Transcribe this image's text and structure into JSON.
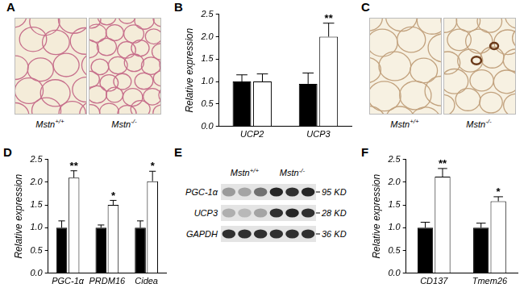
{
  "chart_data": [
    {
      "panel": "B",
      "type": "bar",
      "y_label": "Relative expression",
      "categories": [
        "UCP2",
        "UCP3"
      ],
      "series": [
        {
          "color": "#000000",
          "values": [
            1.0,
            0.95
          ],
          "errors": [
            0.15,
            0.24
          ]
        },
        {
          "color": "#ffffff",
          "values": [
            1.0,
            2.0
          ],
          "errors": [
            0.17,
            0.3
          ]
        }
      ],
      "annotations": [
        {
          "category": "UCP3",
          "series": 1,
          "text": "**"
        }
      ],
      "ylim": [
        0,
        2.5
      ],
      "yticks": [
        {
          "value": 0,
          "label": "0.0"
        },
        {
          "value": 0.5,
          "label": "0.5"
        },
        {
          "value": 1,
          "label": "1.0"
        },
        {
          "value": 1.5,
          "label": "1.5"
        },
        {
          "value": 2,
          "label": "2.0"
        },
        {
          "value": 2.5,
          "label": "2.5"
        }
      ],
      "grid": false
    },
    {
      "panel": "D",
      "type": "bar",
      "y_label": "Relative expression",
      "categories": [
        "PGC-1α",
        "PRDM16",
        "Cidea"
      ],
      "series": [
        {
          "color": "#000000",
          "values": [
            1.0,
            1.0,
            1.0
          ],
          "errors": [
            0.15,
            0.06,
            0.15
          ]
        },
        {
          "color": "#ffffff",
          "values": [
            2.1,
            1.5,
            2.02
          ],
          "errors": [
            0.15,
            0.1,
            0.22
          ]
        }
      ],
      "annotations": [
        {
          "category": "PGC-1α",
          "series": 1,
          "text": "**"
        },
        {
          "category": "PRDM16",
          "series": 1,
          "text": "*"
        },
        {
          "category": "Cidea",
          "series": 1,
          "text": "*"
        }
      ],
      "ylim": [
        0,
        2.5
      ],
      "yticks": [
        {
          "value": 0,
          "label": "0.0"
        },
        {
          "value": 0.5,
          "label": "0.5"
        },
        {
          "value": 1,
          "label": "1.0"
        },
        {
          "value": 1.5,
          "label": "1.5"
        },
        {
          "value": 2,
          "label": "2.0"
        },
        {
          "value": 2.5,
          "label": "2.5"
        }
      ],
      "grid": false
    },
    {
      "panel": "F",
      "type": "bar",
      "y_label": "Relative expression",
      "categories": [
        "CD137",
        "Tmem26"
      ],
      "series": [
        {
          "color": "#000000",
          "values": [
            1.0,
            1.0
          ],
          "errors": [
            0.12,
            0.1
          ]
        },
        {
          "color": "#ffffff",
          "values": [
            2.12,
            1.58
          ],
          "errors": [
            0.18,
            0.1
          ]
        }
      ],
      "annotations": [
        {
          "category": "CD137",
          "series": 1,
          "text": "**"
        },
        {
          "category": "Tmem26",
          "series": 1,
          "text": "*"
        }
      ],
      "ylim": [
        0,
        2.5
      ],
      "yticks": [
        {
          "value": 0,
          "label": "0.0"
        },
        {
          "value": 0.5,
          "label": "0.5"
        },
        {
          "value": 1,
          "label": "1.0"
        },
        {
          "value": 1.5,
          "label": "1.5"
        },
        {
          "value": 2,
          "label": "2.0"
        },
        {
          "value": 2.5,
          "label": "2.5"
        }
      ],
      "grid": false
    }
  ],
  "images": [
    {
      "panel": "A",
      "labels": [
        "Mstn+/+",
        "Mstn-/-"
      ]
    },
    {
      "panel": "C",
      "labels": [
        "Mstn+/+",
        "Mstn-/-"
      ]
    }
  ],
  "blot": {
    "panel": "E",
    "groups": [
      "Mstn+/+",
      "Mstn-/-"
    ],
    "bands": [
      "PGC-1α",
      "UCP3",
      "GAPDH"
    ],
    "sizes": [
      "95 KD",
      "28 KD",
      "36 KD"
    ]
  }
}
